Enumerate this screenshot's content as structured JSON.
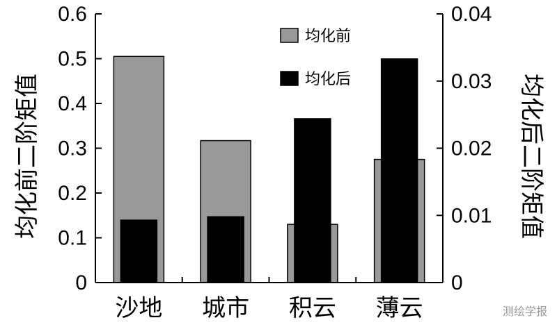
{
  "chart_data": {
    "type": "bar",
    "categories": [
      "沙地",
      "城市",
      "积云",
      "薄云"
    ],
    "series": [
      {
        "name": "均化前",
        "axis": "left",
        "color": "#999999",
        "values": [
          0.505,
          0.317,
          0.13,
          0.275
        ]
      },
      {
        "name": "均化后",
        "axis": "right",
        "color": "#000000",
        "values": [
          0.0093,
          0.0098,
          0.0244,
          0.0333
        ]
      }
    ],
    "ylabel_left": "均化前二阶矩值",
    "ylabel_right": "均化后二阶矩值",
    "ylim_left": [
      0,
      0.6
    ],
    "ylim_right": [
      0,
      0.04
    ],
    "yticks_left": [
      "0",
      "0.1",
      "0.2",
      "0.3",
      "0.4",
      "0.5",
      "0.6"
    ],
    "yticks_right": [
      "0",
      "0.01",
      "0.02",
      "0.03",
      "0.04"
    ],
    "legend_placement": "top-right",
    "grid": false
  },
  "watermark": "测绘学报"
}
